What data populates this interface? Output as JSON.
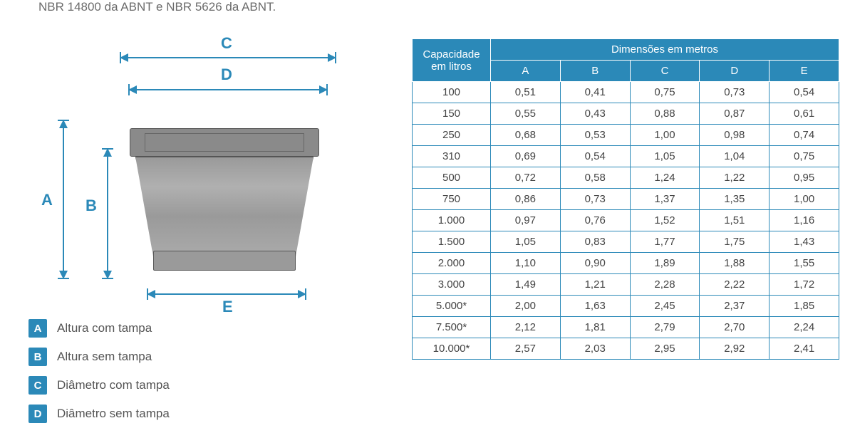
{
  "top_text": "NBR 14800 da ABNT e NBR 5626 da ABNT.",
  "colors": {
    "brand_blue": "#2b89b8",
    "dim_line": "#2b89b8",
    "table_border": "#2b89b8",
    "table_header_bg": "#2b89b8",
    "table_header_text": "#ffffff",
    "legend_badge_bg": "#2b89b8",
    "text_muted": "#555555"
  },
  "diagram": {
    "labels": {
      "A": "A",
      "B": "B",
      "C": "C",
      "D": "D",
      "E": "E"
    }
  },
  "legend": [
    {
      "letter": "A",
      "text": "Altura com tampa"
    },
    {
      "letter": "B",
      "text": "Altura sem tampa"
    },
    {
      "letter": "C",
      "text": "Diâmetro com tampa"
    },
    {
      "letter": "D",
      "text": "Diâmetro sem tampa"
    }
  ],
  "table": {
    "header_capacity": "Capacidade em litros",
    "header_dimensions": "Dimensões em metros",
    "columns": [
      "A",
      "B",
      "C",
      "D",
      "E"
    ],
    "rows": [
      {
        "cap": "100",
        "vals": [
          "0,51",
          "0,41",
          "0,75",
          "0,73",
          "0,54"
        ]
      },
      {
        "cap": "150",
        "vals": [
          "0,55",
          "0,43",
          "0,88",
          "0,87",
          "0,61"
        ]
      },
      {
        "cap": "250",
        "vals": [
          "0,68",
          "0,53",
          "1,00",
          "0,98",
          "0,74"
        ]
      },
      {
        "cap": "310",
        "vals": [
          "0,69",
          "0,54",
          "1,05",
          "1,04",
          "0,75"
        ]
      },
      {
        "cap": "500",
        "vals": [
          "0,72",
          "0,58",
          "1,24",
          "1,22",
          "0,95"
        ]
      },
      {
        "cap": "750",
        "vals": [
          "0,86",
          "0,73",
          "1,37",
          "1,35",
          "1,00"
        ]
      },
      {
        "cap": "1.000",
        "vals": [
          "0,97",
          "0,76",
          "1,52",
          "1,51",
          "1,16"
        ]
      },
      {
        "cap": "1.500",
        "vals": [
          "1,05",
          "0,83",
          "1,77",
          "1,75",
          "1,43"
        ]
      },
      {
        "cap": "2.000",
        "vals": [
          "1,10",
          "0,90",
          "1,89",
          "1,88",
          "1,55"
        ]
      },
      {
        "cap": "3.000",
        "vals": [
          "1,49",
          "1,21",
          "2,28",
          "2,22",
          "1,72"
        ]
      },
      {
        "cap": "5.000*",
        "vals": [
          "2,00",
          "1,63",
          "2,45",
          "2,37",
          "1,85"
        ]
      },
      {
        "cap": "7.500*",
        "vals": [
          "2,12",
          "1,81",
          "2,79",
          "2,70",
          "2,24"
        ]
      },
      {
        "cap": "10.000*",
        "vals": [
          "2,57",
          "2,03",
          "2,95",
          "2,92",
          "2,41"
        ]
      }
    ]
  }
}
